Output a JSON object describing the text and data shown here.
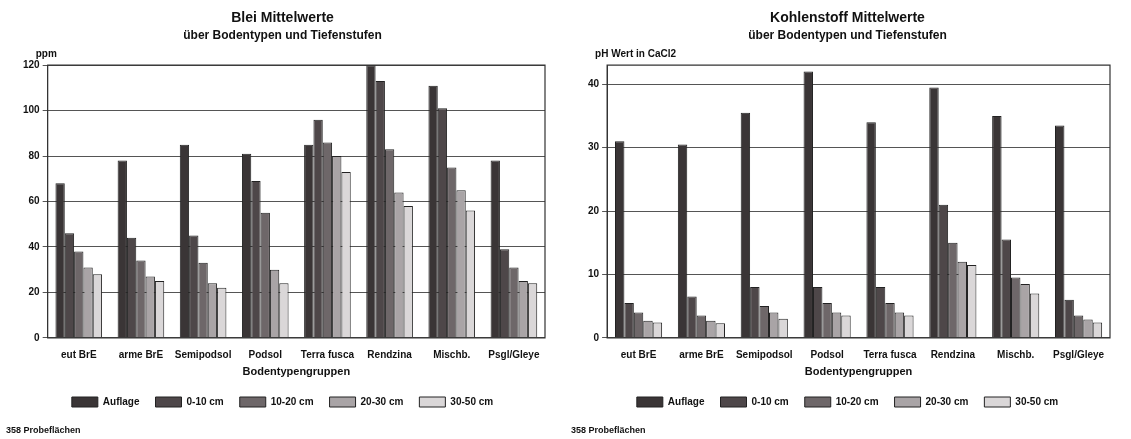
{
  "chart_data": [
    {
      "type": "bar",
      "title": "Blei Mittelwerte",
      "subtitle": "über Bodentypen und Tiefenstufen",
      "xlabel": "Bodentypengruppen",
      "ylabel": "ppm",
      "categories": [
        "eut BrE",
        "arme BrE",
        "Semipodsol",
        "Podsol",
        "Terra fusca",
        "Rendzina",
        "Mischb.",
        "Psgl/Gleye"
      ],
      "series": [
        {
          "name": "Auflage",
          "color": "#3a3536",
          "values": [
            68,
            78,
            85,
            81,
            85,
            120,
            111,
            78
          ]
        },
        {
          "name": "0-10 cm",
          "color": "#4e4749",
          "values": [
            46,
            44,
            45,
            69,
            96,
            113,
            101,
            39
          ]
        },
        {
          "name": "10-20 cm",
          "color": "#6e6769",
          "values": [
            38,
            34,
            33,
            55,
            86,
            83,
            75,
            31
          ]
        },
        {
          "name": "20-30 cm",
          "color": "#a9a4a6",
          "values": [
            31,
            27,
            24,
            30,
            80,
            64,
            65,
            25
          ]
        },
        {
          "name": "30-50 cm",
          "color": "#dad7d8",
          "values": [
            28,
            25,
            22,
            24,
            73,
            58,
            56,
            24
          ]
        }
      ],
      "ylim": [
        0,
        120
      ],
      "yticks": [
        0,
        20,
        40,
        60,
        80,
        100,
        120
      ],
      "grid": "y",
      "legend": "bottom",
      "annotations": [
        "358 Probeflächen"
      ]
    },
    {
      "type": "bar",
      "title": "Kohlenstoff Mittelwerte",
      "subtitle": "über Bodentypen und Tiefenstufen",
      "xlabel": "Bodentypengruppen",
      "ylabel": "pH Wert in CaCl2",
      "categories": [
        "eut BrE",
        "arme BrE",
        "Semipodsol",
        "Podsol",
        "Terra fusca",
        "Rendzina",
        "Mischb.",
        "Psgl/Gleye"
      ],
      "series": [
        {
          "name": "Auflage",
          "color": "#3a3536",
          "values": [
            31,
            30.5,
            35.5,
            42,
            34,
            39.5,
            35,
            33.5
          ]
        },
        {
          "name": "0-10 cm",
          "color": "#4e4749",
          "values": [
            5.5,
            6.5,
            8,
            8,
            8,
            21,
            15.5,
            6
          ]
        },
        {
          "name": "10-20 cm",
          "color": "#6e6769",
          "values": [
            4,
            3.5,
            5,
            5.5,
            5.5,
            15,
            9.5,
            3.5
          ]
        },
        {
          "name": "20-30 cm",
          "color": "#a9a4a6",
          "values": [
            2.7,
            2.7,
            4,
            4,
            4,
            12,
            8.5,
            2.9
          ]
        },
        {
          "name": "30-50 cm",
          "color": "#dad7d8",
          "values": [
            2.4,
            2.3,
            3,
            3.5,
            3.5,
            11.5,
            7,
            2.4
          ]
        }
      ],
      "ylim": [
        0,
        43
      ],
      "yticks": [
        0,
        10,
        20,
        30,
        40
      ],
      "grid": "y",
      "legend": "bottom",
      "annotations": [
        "358 Probeflächen"
      ]
    }
  ]
}
